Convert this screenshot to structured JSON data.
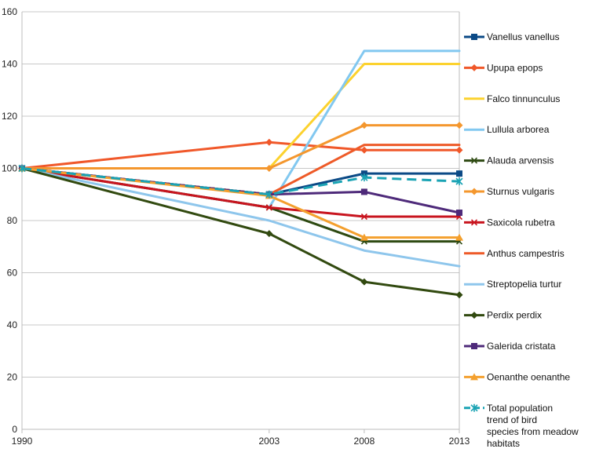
{
  "chart_data": {
    "type": "line",
    "title": "",
    "xlabel": "",
    "ylabel": "",
    "x": [
      "1990",
      "2003",
      "2008",
      "2013"
    ],
    "ylim": [
      0,
      160
    ],
    "yticks": [
      "0",
      "20",
      "40",
      "60",
      "80",
      "100",
      "120",
      "140",
      "160"
    ],
    "grid": "horizontal",
    "legend_position": "right",
    "series": [
      {
        "name": "Vanellus vanellus",
        "values": [
          100,
          90,
          98,
          98
        ],
        "color": "#0b4a86",
        "marker": "square",
        "dash": false
      },
      {
        "name": "Upupa epops",
        "values": [
          100,
          110,
          107,
          107
        ],
        "color": "#f0582a",
        "marker": "diamond",
        "dash": false
      },
      {
        "name": "Falco tinnunculus",
        "values": [
          100,
          100,
          140,
          140
        ],
        "color": "#fcd22e",
        "marker": "none",
        "dash": false
      },
      {
        "name": "Lullula arborea",
        "values": [
          100,
          85,
          145,
          145
        ],
        "color": "#82c8f0",
        "marker": "none",
        "dash": false
      },
      {
        "name": "Alauda arvensis",
        "values": [
          100,
          85,
          72,
          72
        ],
        "color": "#2e4a12",
        "marker": "x",
        "dash": false
      },
      {
        "name": "Sturnus vulgaris",
        "values": [
          100,
          100,
          116.5,
          116.5
        ],
        "color": "#f4972e",
        "marker": "diamond",
        "dash": false
      },
      {
        "name": "Saxicola rubetra",
        "values": [
          100,
          85,
          81.5,
          81.5
        ],
        "color": "#c8141e",
        "marker": "x",
        "dash": false
      },
      {
        "name": "Anthus campestris",
        "values": [
          100,
          90,
          109,
          109
        ],
        "color": "#ee5a28",
        "marker": "none",
        "dash": false
      },
      {
        "name": "Streptopelia turtur",
        "values": [
          100,
          80,
          68.5,
          62.5
        ],
        "color": "#8ec6ec",
        "marker": "none",
        "dash": false
      },
      {
        "name": "Perdix perdix",
        "values": [
          100,
          75,
          56.5,
          51.5
        ],
        "color": "#324a10",
        "marker": "diamond",
        "dash": false
      },
      {
        "name": "Galerida cristata",
        "values": [
          100,
          90,
          91,
          83
        ],
        "color": "#4e2a7a",
        "marker": "square",
        "dash": false
      },
      {
        "name": "Oenanthe oenanthe",
        "values": [
          100,
          89.5,
          73.5,
          73.5
        ],
        "color": "#f4a02e",
        "marker": "triangle",
        "dash": false
      },
      {
        "name": "Total population trend of bird species from meadow habitats",
        "values": [
          100,
          90,
          96.5,
          95
        ],
        "color": "#1aa3b4",
        "marker": "star",
        "dash": true
      }
    ]
  }
}
